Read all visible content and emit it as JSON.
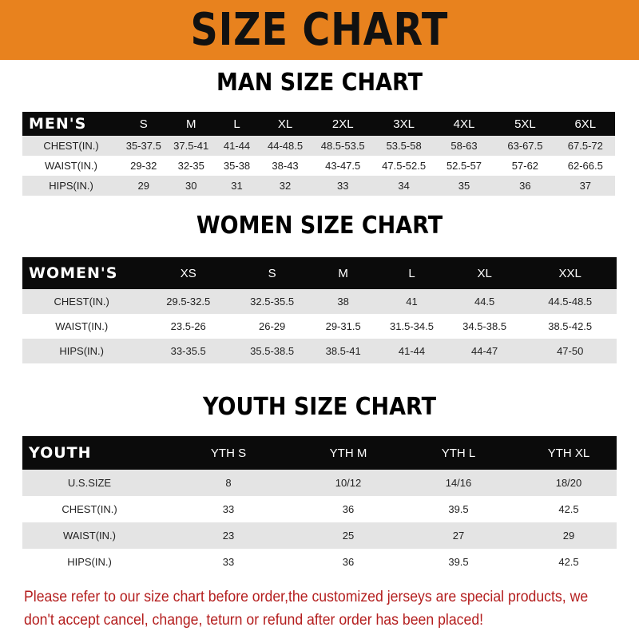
{
  "banner_title": "SIZE CHART",
  "colors": {
    "banner": "#e8821e",
    "header_row": "#0b0b0b",
    "note": "#b41e1e"
  },
  "men": {
    "title": "MAN SIZE CHART",
    "header": [
      "MEN'S",
      "S",
      "M",
      "L",
      "XL",
      "2XL",
      "3XL",
      "4XL",
      "5XL",
      "6XL"
    ],
    "rows": [
      [
        "CHEST(IN.)",
        "35-37.5",
        "37.5-41",
        "41-44",
        "44-48.5",
        "48.5-53.5",
        "53.5-58",
        "58-63",
        "63-67.5",
        "67.5-72"
      ],
      [
        "WAIST(IN.)",
        "29-32",
        "32-35",
        "35-38",
        "38-43",
        "43-47.5",
        "47.5-52.5",
        "52.5-57",
        "57-62",
        "62-66.5"
      ],
      [
        "HIPS(IN.)",
        "29",
        "30",
        "31",
        "32",
        "33",
        "34",
        "35",
        "36",
        "37"
      ]
    ]
  },
  "women": {
    "title": "WOMEN SIZE CHART",
    "header": [
      "WOMEN'S",
      "XS",
      "S",
      "M",
      "L",
      "XL",
      "XXL"
    ],
    "rows": [
      [
        "CHEST(IN.)",
        "29.5-32.5",
        "32.5-35.5",
        "38",
        "41",
        "44.5",
        "44.5-48.5"
      ],
      [
        "WAIST(IN.)",
        "23.5-26",
        "26-29",
        "29-31.5",
        "31.5-34.5",
        "34.5-38.5",
        "38.5-42.5"
      ],
      [
        "HIPS(IN.)",
        "33-35.5",
        "35.5-38.5",
        "38.5-41",
        "41-44",
        "44-47",
        "47-50"
      ]
    ]
  },
  "youth": {
    "title": "YOUTH SIZE CHART",
    "header": [
      "YOUTH",
      "YTH S",
      "YTH M",
      "YTH L",
      "YTH XL"
    ],
    "rows": [
      [
        "U.S.SIZE",
        "8",
        "10/12",
        "14/16",
        "18/20"
      ],
      [
        "CHEST(IN.)",
        "33",
        "36",
        "39.5",
        "42.5"
      ],
      [
        "WAIST(IN.)",
        "23",
        "25",
        "27",
        "29"
      ],
      [
        "HIPS(IN.)",
        "33",
        "36",
        "39.5",
        "42.5"
      ]
    ]
  },
  "note": "Please refer to our size chart before order,the customized jerseys are special products, we don't accept cancel, change, teturn or refund after order has been placed!"
}
